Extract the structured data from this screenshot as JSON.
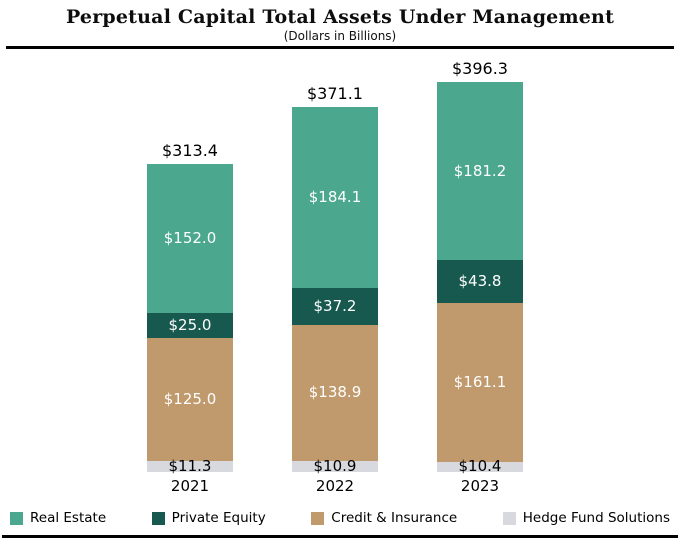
{
  "title": "Perpetual Capital Total Assets Under Management",
  "subtitle": "(Dollars in Billions)",
  "chart_data": {
    "type": "bar",
    "stacked": true,
    "title": "Perpetual Capital Total Assets Under Management",
    "subtitle": "(Dollars in Billions)",
    "categories": [
      "2021",
      "2022",
      "2023"
    ],
    "totals": [
      313.4,
      371.1,
      396.3
    ],
    "total_labels": [
      "$313.4",
      "$371.1",
      "$396.3"
    ],
    "ylim": [
      0,
      400
    ],
    "grid": false,
    "legend_position": "bottom",
    "series": [
      {
        "name": "Hedge Fund Solutions",
        "color": "#d8d9de",
        "label_color": "#000000",
        "values": [
          11.3,
          10.9,
          10.4
        ],
        "labels": [
          "$11.3",
          "$10.9",
          "$10.4"
        ]
      },
      {
        "name": "Credit & Insurance",
        "color": "#c09a6c",
        "label_color": "#ffffff",
        "values": [
          125.0,
          138.9,
          161.1
        ],
        "labels": [
          "$125.0",
          "$138.9",
          "$161.1"
        ]
      },
      {
        "name": "Private Equity",
        "color": "#17594f",
        "label_color": "#ffffff",
        "values": [
          25.0,
          37.2,
          43.8
        ],
        "labels": [
          "$25.0",
          "$37.2",
          "$43.8"
        ]
      },
      {
        "name": "Real Estate",
        "color": "#4ba78d",
        "label_color": "#ffffff",
        "values": [
          152.0,
          184.1,
          181.2
        ],
        "labels": [
          "$152.0",
          "$184.1",
          "$181.2"
        ]
      }
    ],
    "legend": [
      "Real Estate",
      "Private Equity",
      "Credit & Insurance",
      "Hedge Fund Solutions"
    ]
  }
}
